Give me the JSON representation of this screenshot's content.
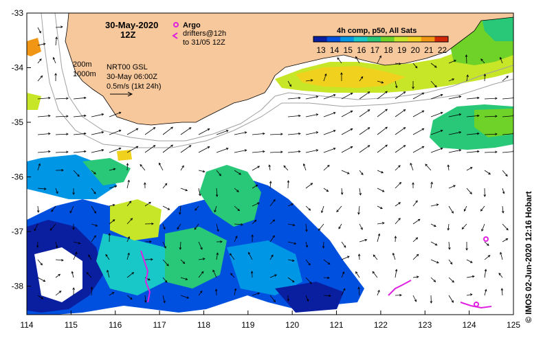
{
  "header": {
    "date": "30-May-2020",
    "hour": "12Z"
  },
  "legend_argo": {
    "label": "Argo",
    "drifters_label": "drifters@12h",
    "drifters_range": "to 31/05 12Z",
    "argo_color": "#e020e0"
  },
  "contours": {
    "c200": "200m",
    "c1000": "1000m"
  },
  "current_info": {
    "source": "NRT00 GSL",
    "time": "30-May 06:00Z",
    "scale": "0.5m/s (1kt 24h)"
  },
  "colorbar": {
    "title": "4h comp, p50, All Sats",
    "ticks": [
      "13",
      "14",
      "15",
      "16",
      "17",
      "18",
      "19",
      "20",
      "21",
      "22"
    ],
    "colors": [
      "#0a1ea0",
      "#0050e0",
      "#0096e6",
      "#18c8c8",
      "#28c878",
      "#6ed228",
      "#c8e628",
      "#f0d21e",
      "#f09614",
      "#d2280a"
    ]
  },
  "axes": {
    "lon_ticks": [
      "114",
      "115",
      "116",
      "117",
      "118",
      "119",
      "120",
      "121",
      "122",
      "123",
      "124",
      "125"
    ],
    "lat_ticks": [
      "-33",
      "-34",
      "-35",
      "-36",
      "-37",
      "-38"
    ]
  },
  "credit": "© IMOS 02-Jun-2020 12:16 Hobart",
  "colors": {
    "land": "#f7c89c",
    "land_outline": "#000000",
    "isobath": "#a0a0a0"
  }
}
